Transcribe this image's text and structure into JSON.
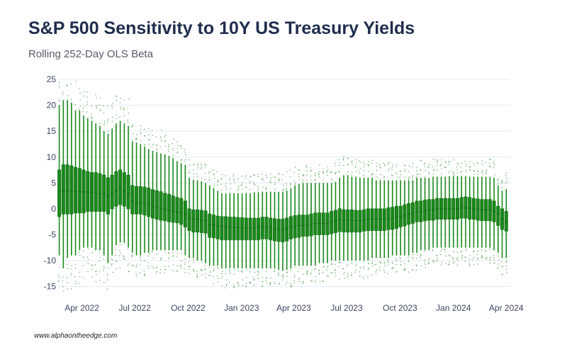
{
  "title": "S&P 500 Sensitivity to 10Y US Treasury Yields",
  "subtitle": "Rolling 252-Day OLS Beta",
  "footer": "www.alphaontheedge.com",
  "colors": {
    "box": "#1a8a1a",
    "dots": "#2a8a2a",
    "grid": "#e4e9f2",
    "text": "#3a4560",
    "title": "#1f2d4d"
  },
  "chart_data": {
    "type": "box",
    "title": "S&P 500 Sensitivity to 10Y US Treasury Yields",
    "subtitle": "Rolling 252-Day OLS Beta",
    "xlabel": "",
    "ylabel": "",
    "ylim": [
      -16,
      25
    ],
    "xlim": [
      "2022-02-21",
      "2024-04-07"
    ],
    "grid": true,
    "y_ticks": [
      25,
      20,
      15,
      10,
      5,
      0,
      -5,
      -10,
      -15
    ],
    "x_ticks": [
      {
        "date": "2022-04-01",
        "label": "Apr 2022"
      },
      {
        "date": "2022-07-01",
        "label": "Jul 2022"
      },
      {
        "date": "2022-10-01",
        "label": "Oct 2022"
      },
      {
        "date": "2023-01-01",
        "label": "Jan 2023"
      },
      {
        "date": "2023-04-01",
        "label": "Apr 2023"
      },
      {
        "date": "2023-07-01",
        "label": "Jul 2023"
      },
      {
        "date": "2023-10-01",
        "label": "Oct 2023"
      },
      {
        "date": "2024-01-01",
        "label": "Jan 2024"
      },
      {
        "date": "2024-04-01",
        "label": "Apr 2024"
      }
    ],
    "boxes": [
      {
        "date": "2022-02-21",
        "q1": -1.5,
        "median": 3.5,
        "q3": 7.5,
        "low": -9,
        "high": 20
      },
      {
        "date": "2022-02-28",
        "q1": -1,
        "median": 3.5,
        "q3": 8.5,
        "low": -11.5,
        "high": 21
      },
      {
        "date": "2022-03-07",
        "q1": -1,
        "median": 3.5,
        "q3": 8.5,
        "low": -9.5,
        "high": 21
      },
      {
        "date": "2022-03-14",
        "q1": -1,
        "median": 3.5,
        "q3": 8.3,
        "low": -9,
        "high": 20.5
      },
      {
        "date": "2022-03-21",
        "q1": -0.8,
        "median": 3.3,
        "q3": 8,
        "low": -9,
        "high": 19
      },
      {
        "date": "2022-03-28",
        "q1": -0.8,
        "median": 3.3,
        "q3": 7.8,
        "low": -8,
        "high": 19
      },
      {
        "date": "2022-04-04",
        "q1": -0.8,
        "median": 3.3,
        "q3": 7.5,
        "low": -7.5,
        "high": 18
      },
      {
        "date": "2022-04-11",
        "q1": -0.5,
        "median": 3.2,
        "q3": 7.2,
        "low": -7.5,
        "high": 17.5
      },
      {
        "date": "2022-04-18",
        "q1": -0.5,
        "median": 3.2,
        "q3": 7,
        "low": -7.5,
        "high": 17
      },
      {
        "date": "2022-04-25",
        "q1": -0.5,
        "median": 3,
        "q3": 7,
        "low": -8,
        "high": 16.5
      },
      {
        "date": "2022-05-02",
        "q1": -0.5,
        "median": 3,
        "q3": 6.8,
        "low": -8,
        "high": 16
      },
      {
        "date": "2022-05-09",
        "q1": -0.5,
        "median": 2.8,
        "q3": 6.5,
        "low": -9,
        "high": 15
      },
      {
        "date": "2022-05-16",
        "q1": -1,
        "median": 2.5,
        "q3": 6,
        "low": -10.5,
        "high": 14.5
      },
      {
        "date": "2022-05-23",
        "q1": 0,
        "median": 3,
        "q3": 6.5,
        "low": -9,
        "high": 15.5
      },
      {
        "date": "2022-05-30",
        "q1": 0.5,
        "median": 3.5,
        "q3": 7.2,
        "low": -7,
        "high": 16.5
      },
      {
        "date": "2022-06-06",
        "q1": 0.8,
        "median": 3.8,
        "q3": 7.5,
        "low": -6.5,
        "high": 17
      },
      {
        "date": "2022-06-13",
        "q1": 0.5,
        "median": 3.5,
        "q3": 7,
        "low": -6.5,
        "high": 16.5
      },
      {
        "date": "2022-06-20",
        "q1": 0,
        "median": 3,
        "q3": 6.5,
        "low": -7.5,
        "high": 16
      },
      {
        "date": "2022-06-27",
        "q1": -1,
        "median": 1.5,
        "q3": 4.5,
        "low": -8.5,
        "high": 13
      },
      {
        "date": "2022-07-04",
        "q1": -1,
        "median": 1.2,
        "q3": 4.3,
        "low": -9,
        "high": 12.8
      },
      {
        "date": "2022-07-11",
        "q1": -1,
        "median": 1.2,
        "q3": 4.3,
        "low": -9,
        "high": 12.5
      },
      {
        "date": "2022-07-18",
        "q1": -1.2,
        "median": 1,
        "q3": 4.2,
        "low": -8.5,
        "high": 12
      },
      {
        "date": "2022-07-25",
        "q1": -1.5,
        "median": 0.8,
        "q3": 4,
        "low": -8.5,
        "high": 11.5
      },
      {
        "date": "2022-08-01",
        "q1": -1.8,
        "median": 0.5,
        "q3": 3.7,
        "low": -8,
        "high": 11.2
      },
      {
        "date": "2022-08-08",
        "q1": -2,
        "median": 0.3,
        "q3": 3.5,
        "low": -8,
        "high": 11
      },
      {
        "date": "2022-08-15",
        "q1": -2.2,
        "median": 0,
        "q3": 3.3,
        "low": -8,
        "high": 10.7
      },
      {
        "date": "2022-08-22",
        "q1": -2.3,
        "median": -0.2,
        "q3": 3,
        "low": -8,
        "high": 10.5
      },
      {
        "date": "2022-08-29",
        "q1": -2.5,
        "median": -0.3,
        "q3": 2.8,
        "low": -8,
        "high": 10.2
      },
      {
        "date": "2022-09-05",
        "q1": -2.6,
        "median": -0.5,
        "q3": 2.5,
        "low": -8,
        "high": 9.8
      },
      {
        "date": "2022-09-12",
        "q1": -2.7,
        "median": -0.6,
        "q3": 2.2,
        "low": -8,
        "high": 9.2
      },
      {
        "date": "2022-09-19",
        "q1": -3,
        "median": -0.8,
        "q3": 2,
        "low": -8,
        "high": 8.8
      },
      {
        "date": "2022-09-26",
        "q1": -3.5,
        "median": -1,
        "q3": 1.5,
        "low": -9,
        "high": 8.5
      },
      {
        "date": "2022-10-03",
        "q1": -4.2,
        "median": -1.8,
        "q3": 0,
        "low": -9.5,
        "high": 6
      },
      {
        "date": "2022-10-10",
        "q1": -4.5,
        "median": -2,
        "q3": -0.2,
        "low": -9.5,
        "high": 5.6
      },
      {
        "date": "2022-10-17",
        "q1": -4.5,
        "median": -2,
        "q3": -0.2,
        "low": -10,
        "high": 5.5
      },
      {
        "date": "2022-10-24",
        "q1": -4.6,
        "median": -2.2,
        "q3": -0.3,
        "low": -10,
        "high": 5.3
      },
      {
        "date": "2022-10-31",
        "q1": -4.7,
        "median": -2.3,
        "q3": -0.4,
        "low": -10.5,
        "high": 5
      },
      {
        "date": "2022-11-07",
        "q1": -5.5,
        "median": -3,
        "q3": -1,
        "low": -11,
        "high": 4.5
      },
      {
        "date": "2022-11-14",
        "q1": -5.6,
        "median": -3.1,
        "q3": -1.2,
        "low": -11,
        "high": 4
      },
      {
        "date": "2022-11-21",
        "q1": -5.8,
        "median": -3.3,
        "q3": -1.4,
        "low": -11,
        "high": 3.5
      },
      {
        "date": "2022-11-28",
        "q1": -6,
        "median": -3.5,
        "q3": -1.5,
        "low": -11.5,
        "high": 3
      },
      {
        "date": "2022-12-05",
        "q1": -6,
        "median": -3.5,
        "q3": -1.5,
        "low": -11.5,
        "high": 3
      },
      {
        "date": "2022-12-12",
        "q1": -6,
        "median": -3.5,
        "q3": -1.6,
        "low": -11.5,
        "high": 3
      },
      {
        "date": "2022-12-19",
        "q1": -6,
        "median": -3.6,
        "q3": -1.6,
        "low": -11.5,
        "high": 3
      },
      {
        "date": "2022-12-26",
        "q1": -6,
        "median": -3.6,
        "q3": -1.7,
        "low": -11.5,
        "high": 3
      },
      {
        "date": "2023-01-02",
        "q1": -6,
        "median": -3.7,
        "q3": -1.7,
        "low": -11.5,
        "high": 3
      },
      {
        "date": "2023-01-09",
        "q1": -6,
        "median": -3.7,
        "q3": -1.8,
        "low": -11.5,
        "high": 3
      },
      {
        "date": "2023-01-16",
        "q1": -6,
        "median": -3.7,
        "q3": -1.8,
        "low": -11.5,
        "high": 3
      },
      {
        "date": "2023-01-23",
        "q1": -6,
        "median": -3.6,
        "q3": -1.8,
        "low": -11.5,
        "high": 3.2
      },
      {
        "date": "2023-01-30",
        "q1": -6,
        "median": -3.5,
        "q3": -1.8,
        "low": -11.5,
        "high": 3.2
      },
      {
        "date": "2023-02-06",
        "q1": -5.8,
        "median": -3.4,
        "q3": -1.6,
        "low": -11.5,
        "high": 3.3
      },
      {
        "date": "2023-02-13",
        "q1": -5.8,
        "median": -3.5,
        "q3": -1.6,
        "low": -11.5,
        "high": 3.3
      },
      {
        "date": "2023-02-20",
        "q1": -6,
        "median": -3.7,
        "q3": -1.8,
        "low": -11.5,
        "high": 3.3
      },
      {
        "date": "2023-02-27",
        "q1": -6.2,
        "median": -3.8,
        "q3": -1.9,
        "low": -11.5,
        "high": 3.3
      },
      {
        "date": "2023-03-06",
        "q1": -6.3,
        "median": -4,
        "q3": -2,
        "low": -11.8,
        "high": 3.3
      },
      {
        "date": "2023-03-13",
        "q1": -6.4,
        "median": -4,
        "q3": -2,
        "low": -12,
        "high": 3.3
      },
      {
        "date": "2023-03-20",
        "q1": -6.2,
        "median": -3.8,
        "q3": -1.8,
        "low": -11.8,
        "high": 3.5
      },
      {
        "date": "2023-03-27",
        "q1": -5.8,
        "median": -3.5,
        "q3": -1.5,
        "low": -11.5,
        "high": 4
      },
      {
        "date": "2023-04-03",
        "q1": -5.6,
        "median": -3.3,
        "q3": -1.3,
        "low": -11,
        "high": 4.5
      },
      {
        "date": "2023-04-10",
        "q1": -5.5,
        "median": -3.2,
        "q3": -1.2,
        "low": -11,
        "high": 4.8
      },
      {
        "date": "2023-04-17",
        "q1": -5.3,
        "median": -3.2,
        "q3": -1.2,
        "low": -11,
        "high": 5
      },
      {
        "date": "2023-04-24",
        "q1": -5.3,
        "median": -3.2,
        "q3": -1.2,
        "low": -11,
        "high": 5
      },
      {
        "date": "2023-05-01",
        "q1": -5.2,
        "median": -3,
        "q3": -1,
        "low": -11,
        "high": 5
      },
      {
        "date": "2023-05-08",
        "q1": -5,
        "median": -2.8,
        "q3": -0.8,
        "low": -11,
        "high": 5
      },
      {
        "date": "2023-05-15",
        "q1": -5,
        "median": -2.8,
        "q3": -0.8,
        "low": -10.5,
        "high": 5
      },
      {
        "date": "2023-05-22",
        "q1": -5,
        "median": -2.8,
        "q3": -0.8,
        "low": -10.5,
        "high": 5
      },
      {
        "date": "2023-05-29",
        "q1": -5,
        "median": -2.8,
        "q3": -0.8,
        "low": -10.5,
        "high": 5
      },
      {
        "date": "2023-06-05",
        "q1": -4.8,
        "median": -2.5,
        "q3": -0.5,
        "low": -10,
        "high": 5
      },
      {
        "date": "2023-06-12",
        "q1": -4.6,
        "median": -2.3,
        "q3": -0.3,
        "low": -10,
        "high": 5.2
      },
      {
        "date": "2023-06-19",
        "q1": -4.4,
        "median": -2,
        "q3": 0,
        "low": -10,
        "high": 6
      },
      {
        "date": "2023-06-26",
        "q1": -4.5,
        "median": -2.2,
        "q3": -0.2,
        "low": -10,
        "high": 6.5
      },
      {
        "date": "2023-07-03",
        "q1": -4.5,
        "median": -2.2,
        "q3": -0.2,
        "low": -10,
        "high": 6.5
      },
      {
        "date": "2023-07-10",
        "q1": -4.5,
        "median": -2.2,
        "q3": -0.2,
        "low": -10,
        "high": 6.2
      },
      {
        "date": "2023-07-17",
        "q1": -4.5,
        "median": -2.3,
        "q3": -0.3,
        "low": -10,
        "high": 6.2
      },
      {
        "date": "2023-07-24",
        "q1": -4.5,
        "median": -2.3,
        "q3": -0.3,
        "low": -10,
        "high": 6
      },
      {
        "date": "2023-07-31",
        "q1": -4.3,
        "median": -2.2,
        "q3": -0.2,
        "low": -10,
        "high": 6
      },
      {
        "date": "2023-08-07",
        "q1": -4.2,
        "median": -2,
        "q3": 0,
        "low": -10,
        "high": 6
      },
      {
        "date": "2023-08-14",
        "q1": -4.2,
        "median": -2,
        "q3": 0,
        "low": -9.5,
        "high": 6
      },
      {
        "date": "2023-08-21",
        "q1": -4.2,
        "median": -2,
        "q3": 0,
        "low": -9.5,
        "high": 5.5
      },
      {
        "date": "2023-08-28",
        "q1": -4.2,
        "median": -2,
        "q3": 0,
        "low": -9.5,
        "high": 5.5
      },
      {
        "date": "2023-09-04",
        "q1": -4.2,
        "median": -2,
        "q3": 0,
        "low": -9.5,
        "high": 5.5
      },
      {
        "date": "2023-09-11",
        "q1": -4,
        "median": -1.9,
        "q3": 0.2,
        "low": -9.5,
        "high": 5.5
      },
      {
        "date": "2023-09-18",
        "q1": -4,
        "median": -1.8,
        "q3": 0.3,
        "low": -9,
        "high": 5.5
      },
      {
        "date": "2023-09-25",
        "q1": -3.8,
        "median": -1.6,
        "q3": 0.5,
        "low": -9,
        "high": 5.5
      },
      {
        "date": "2023-10-02",
        "q1": -3.5,
        "median": -1.5,
        "q3": 0.5,
        "low": -9,
        "high": 5.5
      },
      {
        "date": "2023-10-09",
        "q1": -3.3,
        "median": -1.3,
        "q3": 0.8,
        "low": -9,
        "high": 5.5
      },
      {
        "date": "2023-10-16",
        "q1": -3,
        "median": -1,
        "q3": 1,
        "low": -9,
        "high": 5.5
      },
      {
        "date": "2023-10-23",
        "q1": -2.8,
        "median": -0.8,
        "q3": 1.2,
        "low": -8.5,
        "high": 5.5
      },
      {
        "date": "2023-10-30",
        "q1": -2.5,
        "median": -0.6,
        "q3": 1.5,
        "low": -8.5,
        "high": 6
      },
      {
        "date": "2023-11-06",
        "q1": -2.5,
        "median": -0.5,
        "q3": 1.5,
        "low": -8,
        "high": 6
      },
      {
        "date": "2023-11-13",
        "q1": -2.3,
        "median": -0.4,
        "q3": 1.7,
        "low": -8,
        "high": 6
      },
      {
        "date": "2023-11-20",
        "q1": -2.2,
        "median": -0.2,
        "q3": 1.8,
        "low": -8,
        "high": 6
      },
      {
        "date": "2023-11-27",
        "q1": -2.2,
        "median": -0.2,
        "q3": 1.8,
        "low": -7.5,
        "high": 6.2
      },
      {
        "date": "2023-12-04",
        "q1": -2,
        "median": 0,
        "q3": 2,
        "low": -7.5,
        "high": 6.2
      },
      {
        "date": "2023-12-11",
        "q1": -2,
        "median": 0,
        "q3": 2,
        "low": -7.5,
        "high": 6.2
      },
      {
        "date": "2023-12-18",
        "q1": -2,
        "median": 0,
        "q3": 2,
        "low": -7.5,
        "high": 6.2
      },
      {
        "date": "2023-12-25",
        "q1": -2,
        "median": 0,
        "q3": 2,
        "low": -7.5,
        "high": 6.3
      },
      {
        "date": "2024-01-01",
        "q1": -2,
        "median": 0,
        "q3": 2,
        "low": -7.5,
        "high": 6.3
      },
      {
        "date": "2024-01-08",
        "q1": -2,
        "median": 0,
        "q3": 2,
        "low": -7.5,
        "high": 6.3
      },
      {
        "date": "2024-01-15",
        "q1": -1.8,
        "median": 0.2,
        "q3": 2.2,
        "low": -7.5,
        "high": 6.3
      },
      {
        "date": "2024-01-22",
        "q1": -1.8,
        "median": 0.2,
        "q3": 2.3,
        "low": -7.5,
        "high": 6.3
      },
      {
        "date": "2024-01-29",
        "q1": -2,
        "median": 0.1,
        "q3": 2.2,
        "low": -7.5,
        "high": 6.2
      },
      {
        "date": "2024-02-05",
        "q1": -2,
        "median": 0,
        "q3": 2,
        "low": -7.5,
        "high": 6.2
      },
      {
        "date": "2024-02-12",
        "q1": -2.2,
        "median": -0.1,
        "q3": 1.9,
        "low": -7.5,
        "high": 6.2
      },
      {
        "date": "2024-02-19",
        "q1": -2.3,
        "median": -0.2,
        "q3": 1.8,
        "low": -7.5,
        "high": 6.2
      },
      {
        "date": "2024-02-26",
        "q1": -2.3,
        "median": -0.2,
        "q3": 1.8,
        "low": -7.5,
        "high": 6.2
      },
      {
        "date": "2024-03-04",
        "q1": -2.3,
        "median": -0.2,
        "q3": 1.8,
        "low": -7.5,
        "high": 6.2
      },
      {
        "date": "2024-03-11",
        "q1": -2.5,
        "median": -0.5,
        "q3": 1.5,
        "low": -8,
        "high": 6
      },
      {
        "date": "2024-03-18",
        "q1": -3.2,
        "median": -1,
        "q3": 0.5,
        "low": -8.5,
        "high": 4.5
      },
      {
        "date": "2024-03-25",
        "q1": -4,
        "median": -2,
        "q3": 0,
        "low": -9.5,
        "high": 3.5
      },
      {
        "date": "2024-04-01",
        "q1": -4.3,
        "median": -2.5,
        "q3": -0.5,
        "low": -9.5,
        "high": 3.8
      }
    ]
  }
}
